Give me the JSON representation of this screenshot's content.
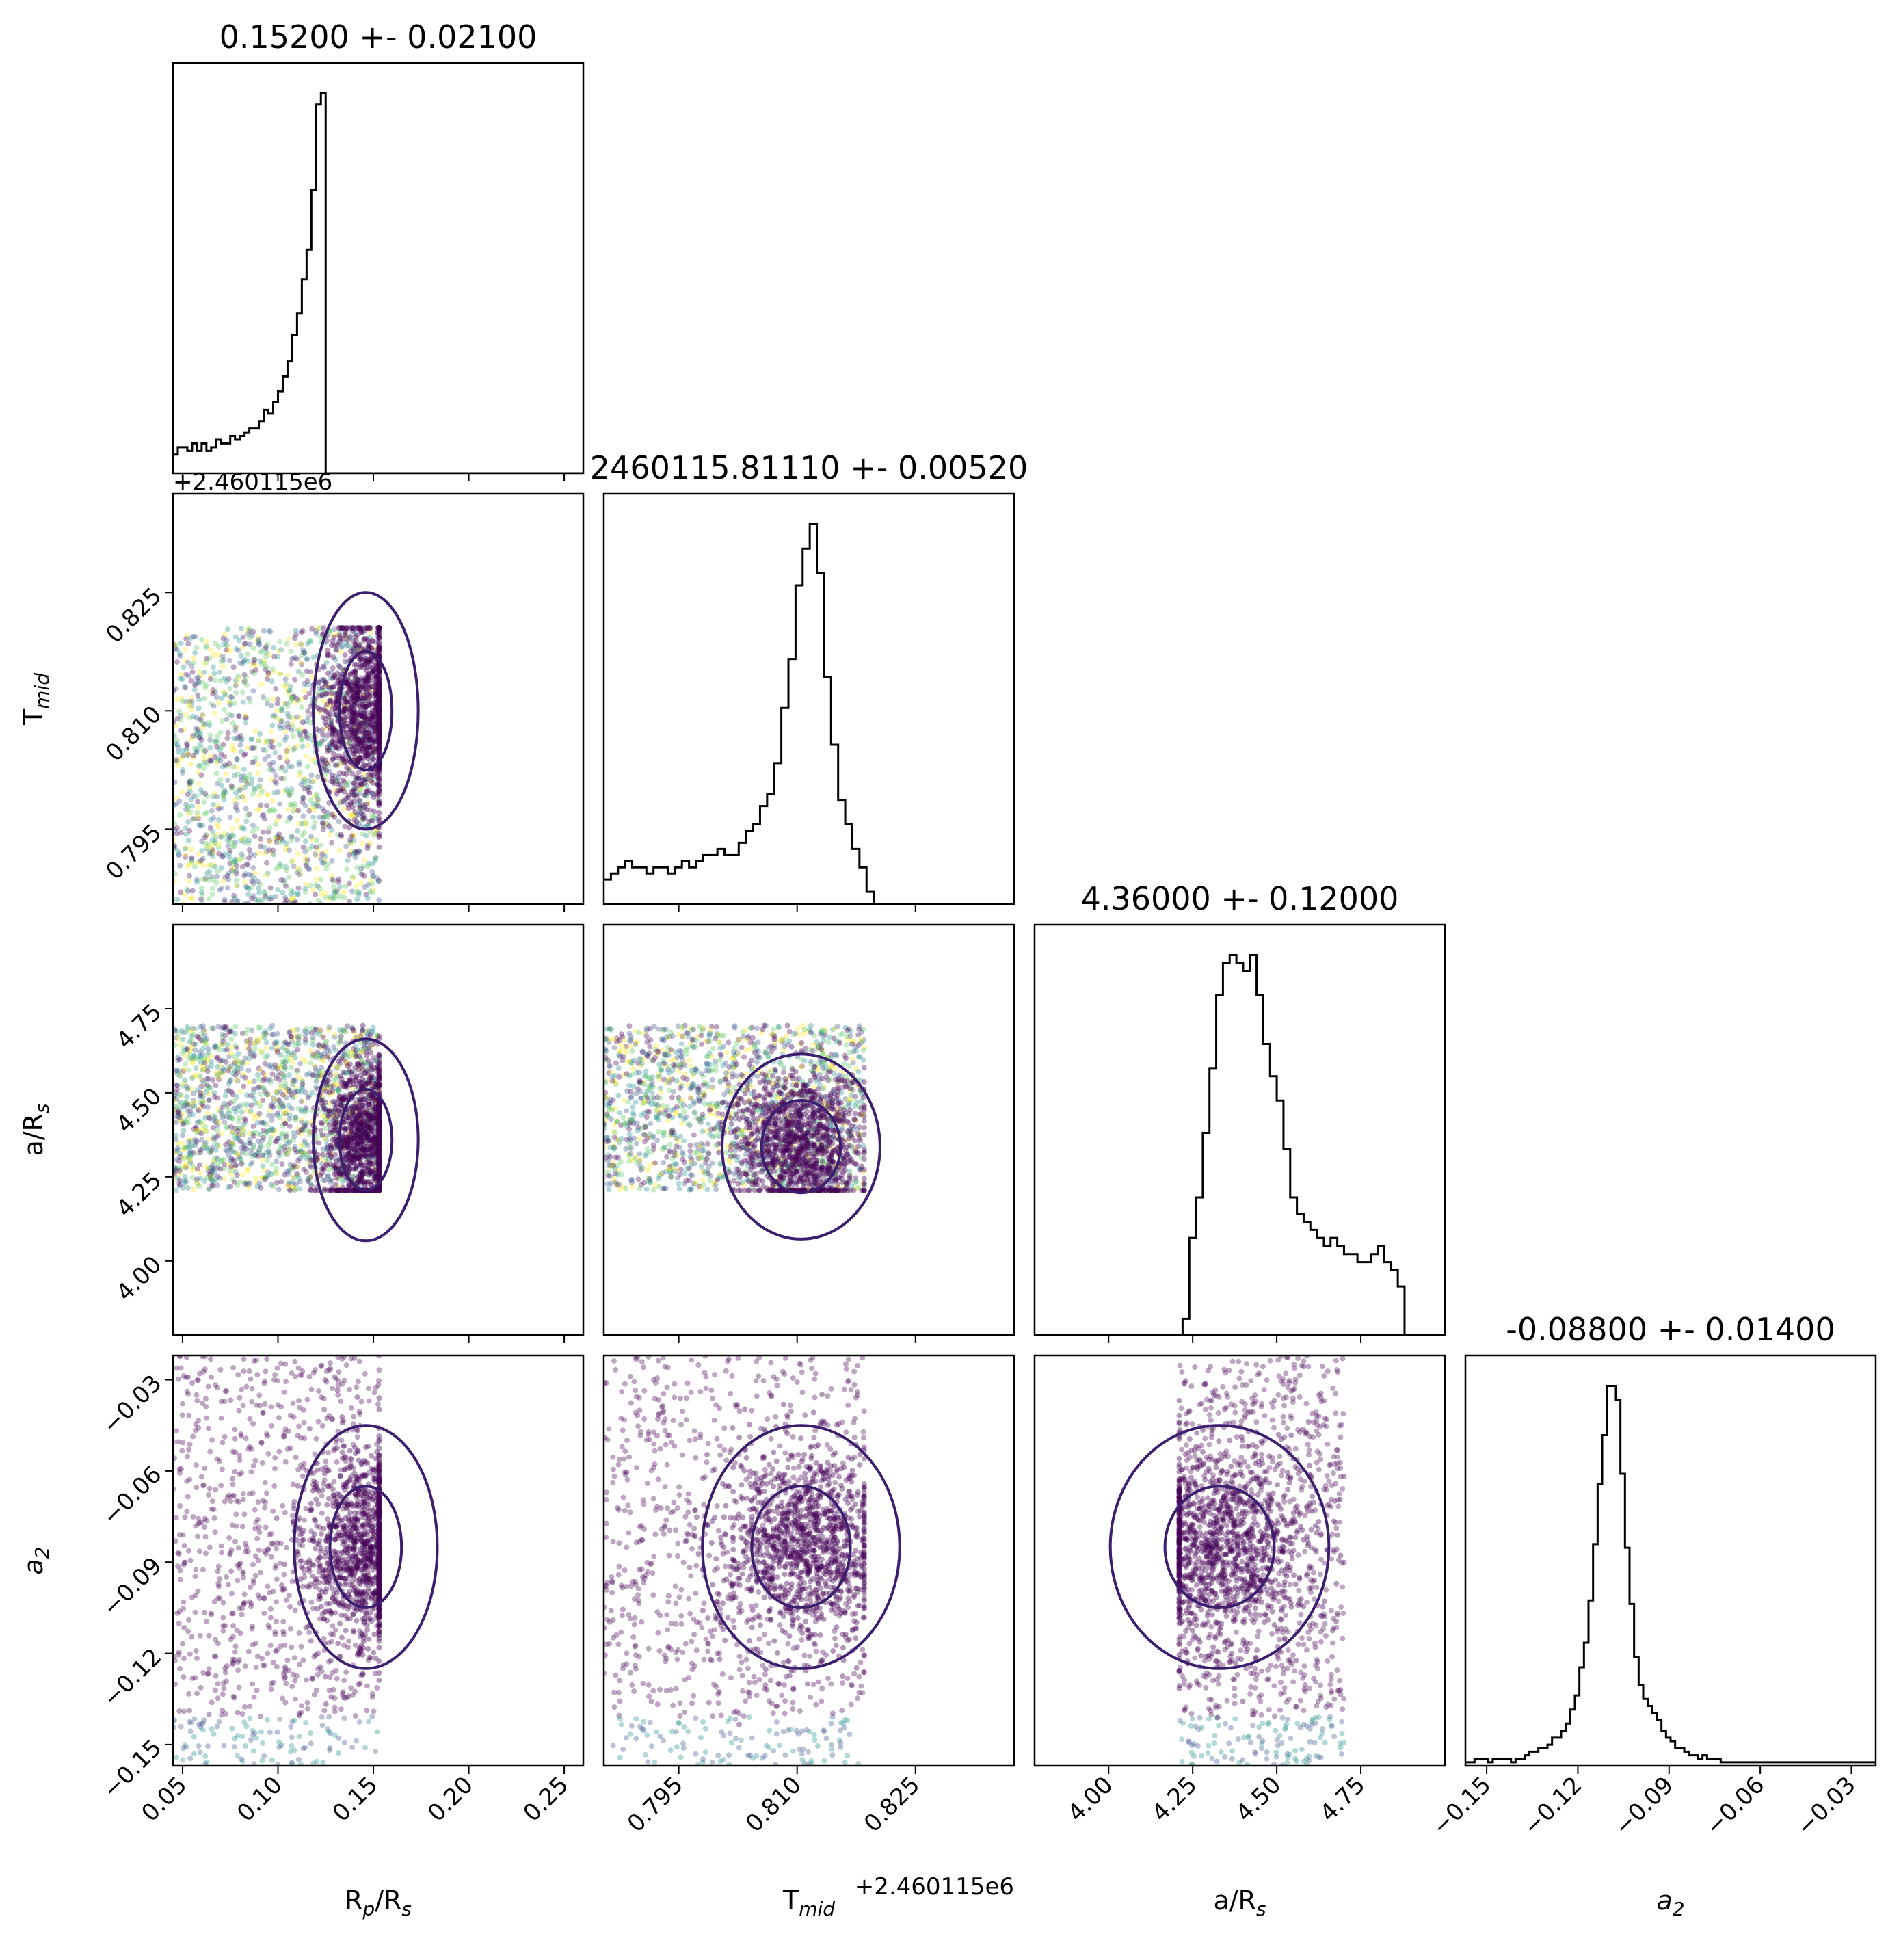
{
  "chart_data": {
    "type": "corner",
    "parameters": [
      {
        "key": "rp",
        "label_main": "R",
        "label_sub1": "p",
        "label_mid": "/R",
        "label_sub2": "s",
        "title": "0.15200 +- 0.02100",
        "range": [
          0.045,
          0.26
        ],
        "ticks": [
          0.05,
          0.1,
          0.15,
          0.2,
          0.25
        ],
        "tick_labels": [
          "0.05",
          "0.10",
          "0.15",
          "0.20",
          "0.25"
        ],
        "offset_text": ""
      },
      {
        "key": "tmid",
        "label_main": "T",
        "label_sub1": "mid",
        "label_mid": "",
        "label_sub2": "",
        "title": "2460115.81110 +- 0.00520",
        "range": [
          0.7855,
          0.8375
        ],
        "ticks": [
          0.795,
          0.81,
          0.825
        ],
        "tick_labels": [
          "0.795",
          "0.810",
          "0.825"
        ],
        "offset_text": "+2.460115e6"
      },
      {
        "key": "ars",
        "label_main": "a/R",
        "label_sub1": "",
        "label_mid": "",
        "label_sub2": "s",
        "title": "4.36000 +- 0.12000",
        "range": [
          3.78,
          5.0
        ],
        "ticks": [
          4.0,
          4.25,
          4.5,
          4.75
        ],
        "tick_labels": [
          "4.00",
          "4.25",
          "4.50",
          "4.75"
        ],
        "offset_text": ""
      },
      {
        "key": "a2",
        "label_main": "a",
        "label_sub1": "",
        "label_mid": "",
        "label_sub2": "2",
        "italic": true,
        "title": "-0.08800 +- 0.01400",
        "range": [
          -0.157,
          -0.022
        ],
        "ticks": [
          -0.15,
          -0.12,
          -0.09,
          -0.06,
          -0.03
        ],
        "tick_labels": [
          "−0.15",
          "−0.12",
          "−0.09",
          "−0.06",
          "−0.03"
        ],
        "offset_text": ""
      }
    ],
    "histograms": [
      {
        "param": "rp",
        "bin_start": 0.045,
        "bin_width": 0.0025,
        "counts": [
          5,
          7,
          7,
          6,
          8,
          6,
          8,
          6,
          7,
          9,
          8,
          8,
          10,
          9,
          10,
          11,
          12,
          12,
          14,
          17,
          16,
          19,
          22,
          26,
          30,
          37,
          43,
          52,
          60,
          76,
          99,
          102,
          0,
          0,
          0,
          0,
          0,
          0,
          0,
          0,
          0,
          0,
          0,
          0,
          0,
          0,
          0,
          0,
          0,
          0,
          0,
          0,
          0,
          0,
          0,
          0,
          0,
          0,
          0,
          0,
          0,
          0,
          0,
          0,
          0,
          0,
          0,
          0,
          0,
          0,
          0,
          0,
          0,
          0,
          0,
          0,
          0,
          0,
          0,
          0,
          0,
          0,
          0,
          0,
          0,
          0
        ]
      },
      {
        "param": "tmid",
        "bin_start": 0.7855,
        "bin_width": 0.0009,
        "counts": [
          4,
          5,
          6,
          7,
          6,
          6,
          5,
          6,
          6,
          5,
          6,
          7,
          6,
          7,
          8,
          8,
          9,
          8,
          8,
          10,
          12,
          13,
          16,
          18,
          23,
          32,
          40,
          52,
          58,
          62,
          54,
          37,
          26,
          17,
          13,
          9,
          6,
          2,
          0,
          0,
          0,
          0,
          0,
          0,
          0,
          0,
          0,
          0,
          0,
          0,
          0,
          0,
          0,
          0,
          0,
          0,
          0,
          0,
          0
        ]
      },
      {
        "param": "ars",
        "bin_start": 3.78,
        "bin_width": 0.02,
        "counts": [
          0,
          0,
          0,
          0,
          0,
          0,
          0,
          0,
          0,
          0,
          0,
          0,
          0,
          0,
          0,
          0,
          0,
          0,
          0,
          0,
          0,
          0,
          2,
          12,
          17,
          25,
          33,
          42,
          46,
          47,
          46,
          45,
          47,
          42,
          36,
          32,
          29,
          23,
          17,
          15,
          14,
          13,
          12,
          11,
          12,
          11,
          10,
          10,
          9,
          9,
          10,
          11,
          9,
          8,
          6,
          0,
          0,
          0,
          0,
          0,
          0,
          0
        ]
      },
      {
        "param": "a2",
        "bin_start": -0.157,
        "bin_width": 0.0015,
        "counts": [
          1,
          1,
          2,
          2,
          2,
          1,
          2,
          2,
          2,
          2,
          1,
          2,
          2,
          3,
          4,
          4,
          5,
          5,
          6,
          8,
          8,
          10,
          12,
          16,
          20,
          28,
          35,
          47,
          63,
          80,
          94,
          108,
          108,
          104,
          83,
          62,
          46,
          31,
          23,
          19,
          17,
          15,
          13,
          10,
          8,
          7,
          5,
          5,
          4,
          3,
          3,
          2,
          3,
          2,
          2,
          2,
          1,
          1,
          1,
          1,
          1,
          1,
          1,
          1,
          1,
          1,
          1,
          1,
          1,
          1,
          1,
          1,
          1,
          1,
          1,
          1,
          1,
          1,
          1,
          1,
          1,
          1,
          1,
          1,
          1,
          1,
          1,
          1,
          1,
          1,
          1
        ]
      }
    ],
    "scatter_panels": [
      {
        "x": "rp",
        "y": "tmid",
        "core": {
          "cx": 0.146,
          "cy": 0.81,
          "sx": 0.011,
          "sy": 0.006
        },
        "box_x": [
          0.045,
          0.153
        ],
        "box_y": [
          0.7855,
          0.8205
        ]
      },
      {
        "x": "rp",
        "y": "ars",
        "core": {
          "cx": 0.146,
          "cy": 4.36,
          "sx": 0.011,
          "sy": 0.12
        },
        "box_x": [
          0.045,
          0.153
        ],
        "box_y": [
          4.21,
          4.7
        ]
      },
      {
        "x": "tmid",
        "y": "ars",
        "core": {
          "cx": 0.8105,
          "cy": 4.34,
          "sx": 0.004,
          "sy": 0.11
        },
        "box_x": [
          0.7855,
          0.8185
        ],
        "box_y": [
          4.21,
          4.7
        ]
      },
      {
        "x": "rp",
        "y": "a2",
        "core": {
          "cx": 0.146,
          "cy": -0.085,
          "sx": 0.015,
          "sy": 0.016
        },
        "box_x": [
          0.045,
          0.153
        ],
        "box_y": [
          -0.157,
          -0.022
        ]
      },
      {
        "x": "tmid",
        "y": "a2",
        "core": {
          "cx": 0.8105,
          "cy": -0.085,
          "sx": 0.005,
          "sy": 0.016
        },
        "box_x": [
          0.7855,
          0.8185
        ],
        "box_y": [
          -0.157,
          -0.022
        ]
      },
      {
        "x": "ars",
        "y": "a2",
        "core": {
          "cx": 4.33,
          "cy": -0.085,
          "sx": 0.13,
          "sy": 0.016
        },
        "box_x": [
          4.21,
          4.7
        ],
        "box_y": [
          -0.157,
          -0.022
        ]
      }
    ],
    "contour_color": "#3b1e6e",
    "point_colormap": [
      "#440154",
      "#3b528b",
      "#21918c",
      "#5ec962",
      "#fde725"
    ],
    "grid": false,
    "legend": "none"
  }
}
